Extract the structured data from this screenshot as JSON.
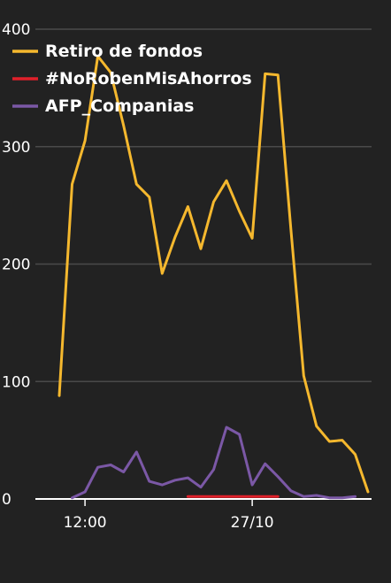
{
  "chart_data": {
    "type": "line",
    "title": "",
    "xlabel": "",
    "ylabel": "",
    "ylim": [
      0,
      400
    ],
    "yticks": [
      0,
      100,
      200,
      300,
      400
    ],
    "xtick_labels": [
      "12:00",
      "27/10"
    ],
    "xtick_index": [
      2,
      15
    ],
    "grid": "horizontal",
    "legend_position": "top-left",
    "series": [
      {
        "name": "Retiro de fondos",
        "color": "#f5b82e",
        "start_index": 0,
        "values": [
          88,
          268,
          305,
          377,
          363,
          318,
          268,
          257,
          192,
          223,
          249,
          213,
          253,
          271,
          245,
          222,
          362,
          361,
          230,
          105,
          62,
          49,
          50,
          38,
          6
        ]
      },
      {
        "name": "#NoRobenMisAhorros",
        "color": "#e0202a",
        "start_index": 10,
        "values": [
          2,
          2,
          2,
          2,
          2,
          2,
          2,
          2
        ]
      },
      {
        "name": "AFP_Companias",
        "color": "#7b58a6",
        "start_index": 1,
        "values": [
          1,
          6,
          27,
          29,
          23,
          40,
          15,
          12,
          16,
          18,
          10,
          25,
          61,
          55,
          12,
          30,
          19,
          7,
          2,
          3,
          1,
          1,
          2
        ]
      }
    ]
  }
}
